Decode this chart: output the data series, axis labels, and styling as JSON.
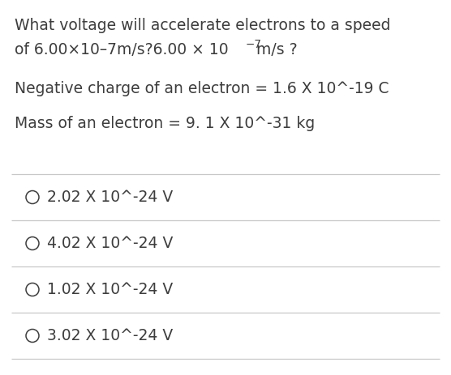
{
  "background_color": "#ffffff",
  "text_color": "#3d3d3d",
  "line_color": "#c8c8c8",
  "question_line1": "What voltage will accelerate electrons to a speed",
  "question_line2_part1": "of 6.00×10–7m/s?6.00 × 10",
  "question_line2_sup": "−7",
  "question_line2_part2": "m/s ?",
  "given_line1": "Negative charge of an electron = 1.6 X 10^-19 C",
  "given_line2": "Mass of an electron = 9. 1 X 10^-31 kg",
  "options": [
    "2.02 X 10^-24 V",
    "4.02 X 10^-24 V",
    "1.02 X 10^-24 V",
    "3.02 X 10^-24 V"
  ],
  "font_size": 13.5,
  "figsize": [
    5.56,
    4.63
  ],
  "dpi": 100
}
